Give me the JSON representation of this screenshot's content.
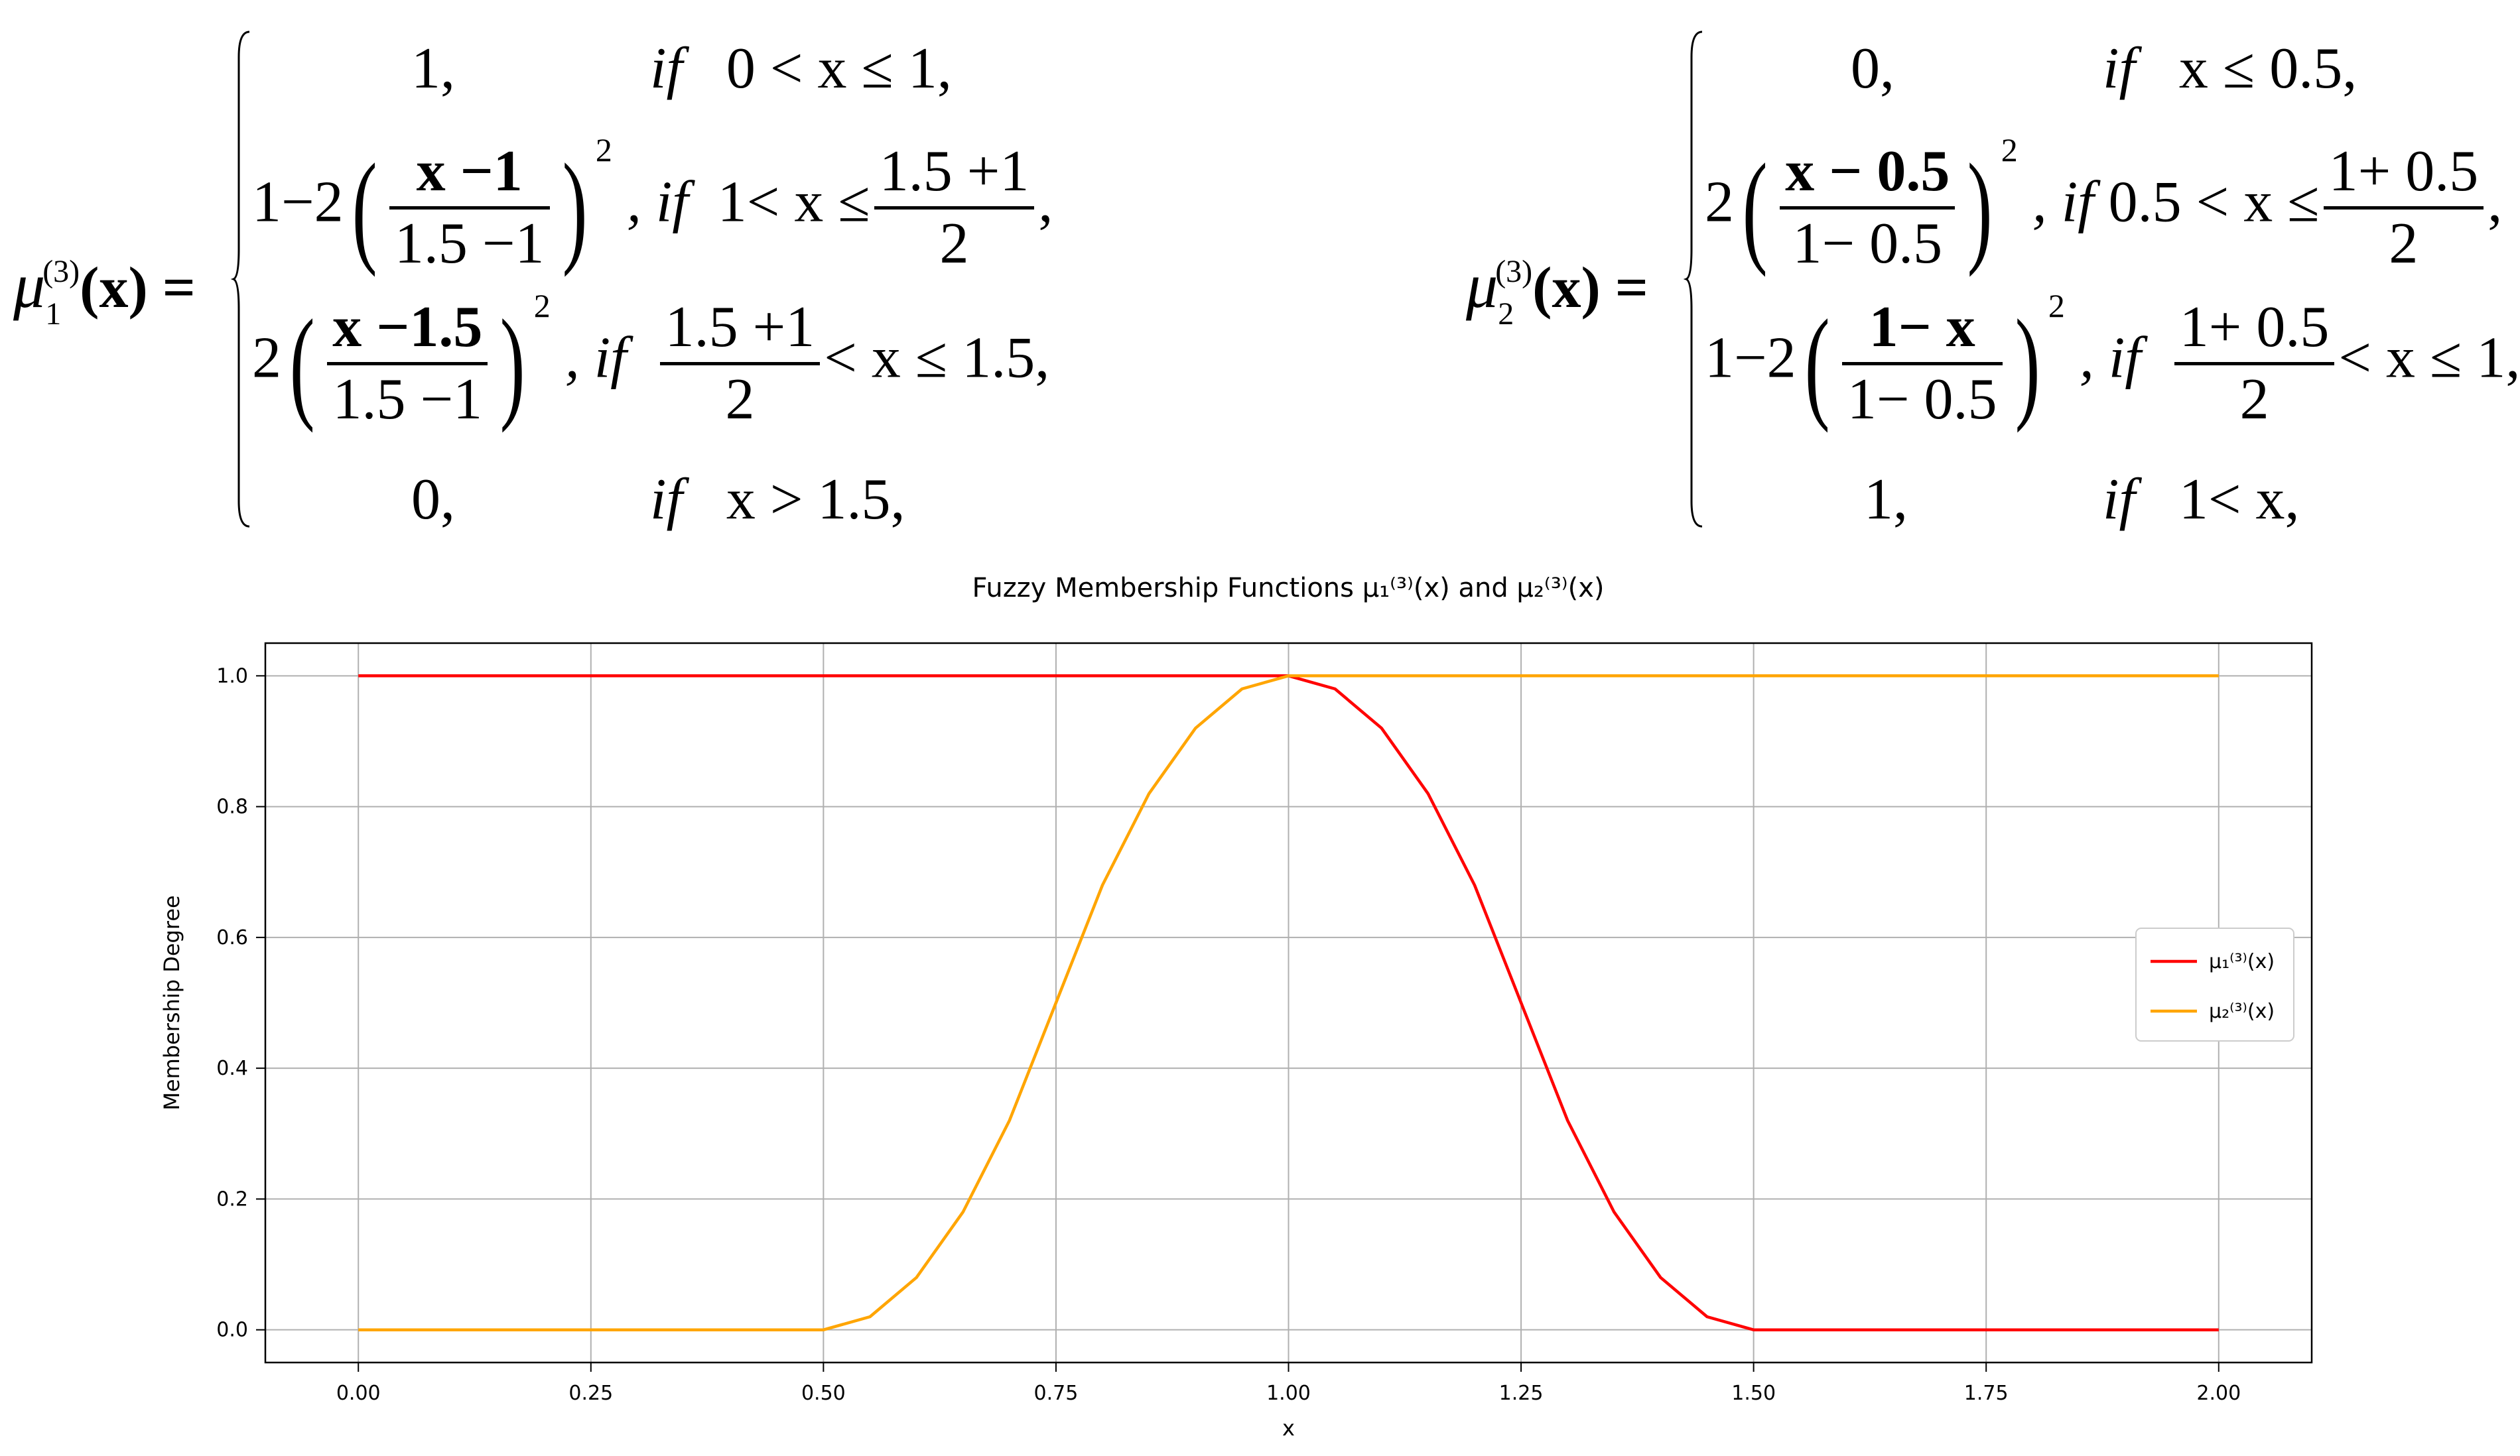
{
  "equations": {
    "mu1": {
      "lhs_symbol": "μ",
      "lhs_sub": "1",
      "lhs_sup": "(3)",
      "lhs_arg": "(x) =",
      "rows": [
        {
          "value": "1,",
          "cond_kw": "if",
          "cond": "0 < x ≤ 1,"
        },
        {
          "value_pre": "1−2",
          "frac_num": "x −1",
          "frac_den": "1.5 −1",
          "exp": "2",
          "cond_kw": ", if",
          "cond_pre": "1< x ≤",
          "cond_frac_num": "1.5 +1",
          "cond_frac_den": "2",
          "cond_post": ","
        },
        {
          "value_pre": "2",
          "frac_num": "x −1.5",
          "frac_den": "1.5 −1",
          "exp": "2",
          "cond_kw": ", if",
          "cond_frac_num": "1.5 +1",
          "cond_frac_den": "2",
          "cond_post": "< x ≤ 1.5,"
        },
        {
          "value": "0,",
          "cond_kw": "if",
          "cond": "x > 1.5,"
        }
      ]
    },
    "mu2": {
      "lhs_symbol": "μ",
      "lhs_sub": "2",
      "lhs_sup": "(3)",
      "lhs_arg": "(x) =",
      "rows": [
        {
          "value": "0,",
          "cond_kw": "if",
          "cond": "x ≤ 0.5,"
        },
        {
          "value_pre": "2",
          "frac_num": "x − 0.5",
          "frac_den": "1− 0.5",
          "exp": "2",
          "cond_kw": ", if",
          "cond_pre": "0.5 < x ≤",
          "cond_frac_num": "1+ 0.5",
          "cond_frac_den": "2",
          "cond_post": ","
        },
        {
          "value_pre": "1−2",
          "frac_num": "1− x",
          "frac_den": "1− 0.5",
          "exp": "2",
          "cond_kw": ", if",
          "cond_frac_num": "1+ 0.5",
          "cond_frac_den": "2",
          "cond_post": "< x ≤ 1,"
        },
        {
          "value": "1,",
          "cond_kw": "if",
          "cond": "1< x,"
        }
      ]
    }
  },
  "chart_data": {
    "type": "line",
    "title": "Fuzzy Membership Functions μ₁⁽³⁾(x) and μ₂⁽³⁾(x)",
    "xlabel": "x",
    "ylabel": "Membership Degree",
    "xlim": [
      -0.1,
      2.1
    ],
    "ylim": [
      -0.05,
      1.05
    ],
    "x_ticks": [
      "0.00",
      "0.25",
      "0.50",
      "0.75",
      "1.00",
      "1.25",
      "1.50",
      "1.75",
      "2.00"
    ],
    "y_ticks": [
      "0.0",
      "0.2",
      "0.4",
      "0.6",
      "0.8",
      "1.0"
    ],
    "grid": true,
    "legend_position": "center-right",
    "series": [
      {
        "name": "μ₁⁽³⁾(x)",
        "color": "#ff0000",
        "x": [
          0,
          0.5,
          1.0,
          1.05,
          1.1,
          1.15,
          1.2,
          1.25,
          1.3,
          1.35,
          1.4,
          1.45,
          1.5,
          1.75,
          2.0
        ],
        "y": [
          1,
          1,
          1,
          0.98,
          0.92,
          0.82,
          0.68,
          0.5,
          0.32,
          0.18,
          0.08,
          0.02,
          0,
          0,
          0
        ]
      },
      {
        "name": "μ₂⁽³⁾(x)",
        "color": "#ffa500",
        "x": [
          0,
          0.25,
          0.5,
          0.55,
          0.6,
          0.65,
          0.7,
          0.75,
          0.8,
          0.85,
          0.9,
          0.95,
          1.0,
          1.5,
          2.0
        ],
        "y": [
          0,
          0,
          0,
          0.02,
          0.08,
          0.18,
          0.32,
          0.5,
          0.68,
          0.82,
          0.92,
          0.98,
          1,
          1,
          1
        ]
      }
    ]
  }
}
